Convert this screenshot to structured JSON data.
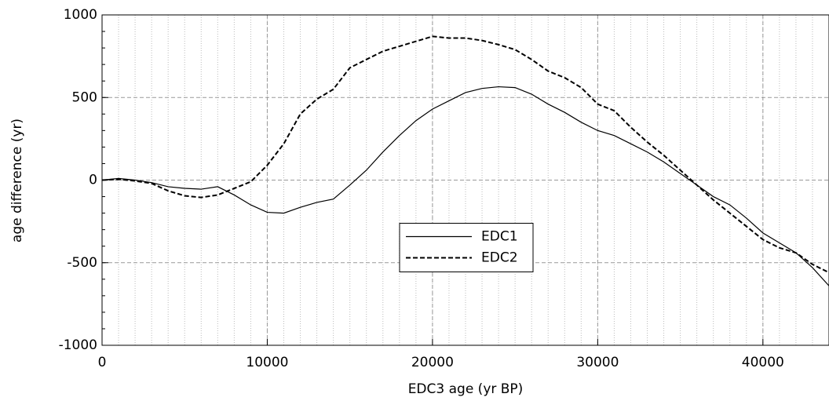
{
  "chart_data": {
    "type": "line",
    "xlabel": "EDC3 age (yr BP)",
    "ylabel": "age difference (yr)",
    "x": [
      0,
      1000,
      2000,
      3000,
      4000,
      5000,
      6000,
      7000,
      8000,
      9000,
      10000,
      11000,
      12000,
      13000,
      14000,
      15000,
      16000,
      17000,
      18000,
      19000,
      20000,
      21000,
      22000,
      23000,
      24000,
      25000,
      26000,
      27000,
      28000,
      29000,
      30000,
      31000,
      32000,
      33000,
      34000,
      35000,
      36000,
      37000,
      38000,
      39000,
      40000,
      41000,
      42000,
      43000,
      44000
    ],
    "series": [
      {
        "name": "EDC1",
        "color": "#000000",
        "linestyle": "solid",
        "values": [
          0,
          10,
          0,
          -15,
          -40,
          -50,
          -55,
          -40,
          -90,
          -150,
          -195,
          -200,
          -165,
          -135,
          -115,
          -30,
          60,
          170,
          270,
          360,
          430,
          480,
          530,
          555,
          565,
          560,
          520,
          460,
          410,
          350,
          300,
          270,
          220,
          170,
          110,
          40,
          -30,
          -100,
          -150,
          -230,
          -320,
          -380,
          -440,
          -530,
          -640
        ]
      },
      {
        "name": "EDC2",
        "color": "#000000",
        "linestyle": "dashed",
        "values": [
          0,
          5,
          -5,
          -20,
          -65,
          -95,
          -105,
          -90,
          -50,
          -10,
          90,
          220,
          400,
          490,
          550,
          680,
          730,
          780,
          810,
          840,
          870,
          860,
          860,
          845,
          820,
          790,
          730,
          660,
          620,
          560,
          460,
          420,
          320,
          230,
          150,
          60,
          -30,
          -120,
          -200,
          -280,
          -360,
          -410,
          -440,
          -510,
          -560
        ]
      }
    ],
    "xlim": [
      0,
      44000
    ],
    "xticks": [
      0,
      10000,
      20000,
      30000,
      40000
    ],
    "ylim": [
      -1000,
      1000
    ],
    "yticks": [
      -1000,
      -500,
      0,
      500,
      1000
    ],
    "xminor_step": 1000,
    "yminor_step": 100,
    "grid": true,
    "legend": "center"
  }
}
